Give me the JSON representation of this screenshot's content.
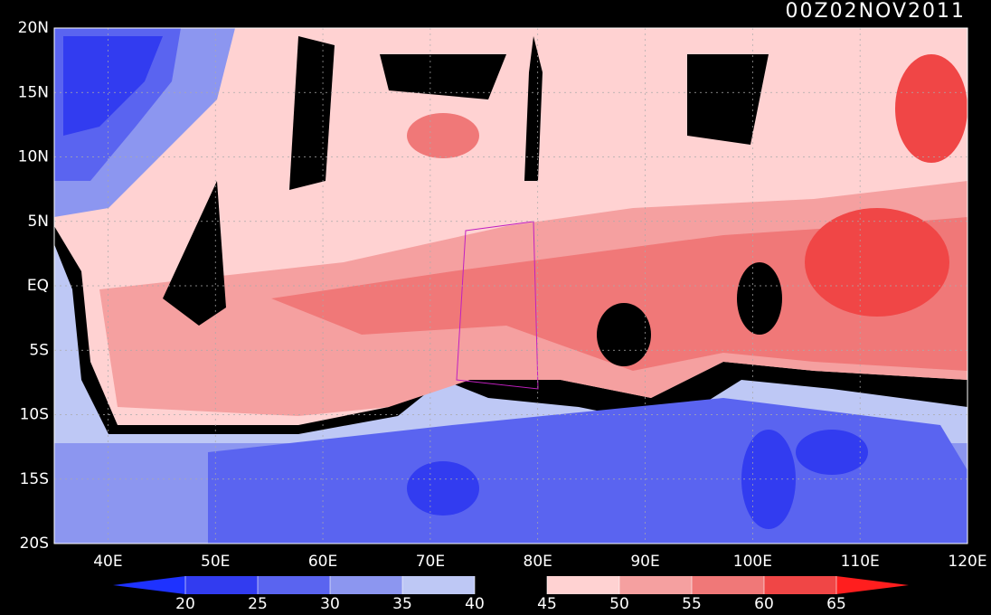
{
  "title": "00Z02NOV2011",
  "lat_labels": [
    "20N",
    "15N",
    "10N",
    "5N",
    "EQ",
    "5S",
    "10S",
    "15S",
    "20S"
  ],
  "lon_labels": [
    "40E",
    "50E",
    "60E",
    "70E",
    "80E",
    "90E",
    "100E",
    "110E",
    "120E"
  ],
  "colorbar": {
    "labels": [
      20,
      25,
      30,
      35,
      40,
      45,
      50,
      55,
      60,
      65
    ],
    "colors": [
      "#1e32ff",
      "#323cf0",
      "#5a64f0",
      "#8c96f0",
      "#bec8f5",
      "#000000",
      "#ffd2d2",
      "#f5a0a0",
      "#f07878",
      "#f04646",
      "#ff1e1e"
    ]
  }
}
